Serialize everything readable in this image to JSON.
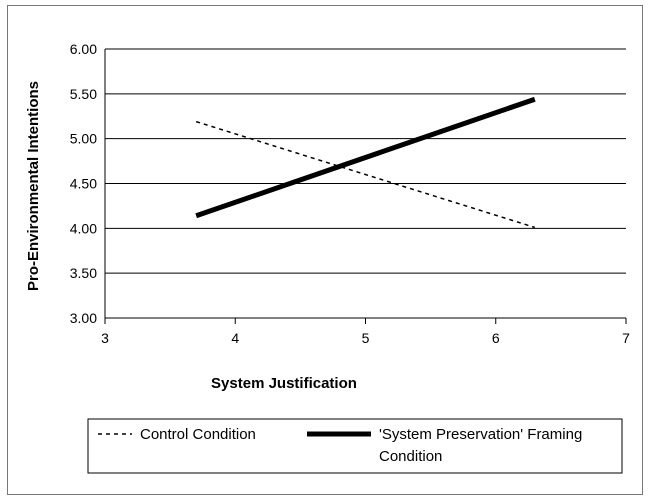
{
  "chart_data": {
    "type": "line",
    "title": "",
    "xlabel": "System Justification",
    "ylabel": "Pro-Environmental Intentions",
    "xlim": [
      3,
      7
    ],
    "ylim": [
      3.0,
      6.0
    ],
    "x_ticks": [
      "3",
      "4",
      "5",
      "6",
      "7"
    ],
    "y_ticks": [
      "3.00",
      "3.50",
      "4.00",
      "4.50",
      "5.00",
      "5.50",
      "6.00"
    ],
    "grid": "horizontal",
    "legend_position": "bottom",
    "series": [
      {
        "name": "Control Condition",
        "style": "dashed",
        "color": "#000000",
        "points": [
          [
            3.7,
            5.19
          ],
          [
            6.3,
            4.01
          ]
        ]
      },
      {
        "name": "'System Preservation' Framing Condition",
        "style": "solid-thick",
        "color": "#000000",
        "points": [
          [
            3.7,
            4.14
          ],
          [
            6.3,
            5.44
          ]
        ]
      }
    ],
    "legend_labels": {
      "control": "Control Condition",
      "framing_line1": "'System Preservation' Framing",
      "framing_line2": "Condition"
    }
  }
}
